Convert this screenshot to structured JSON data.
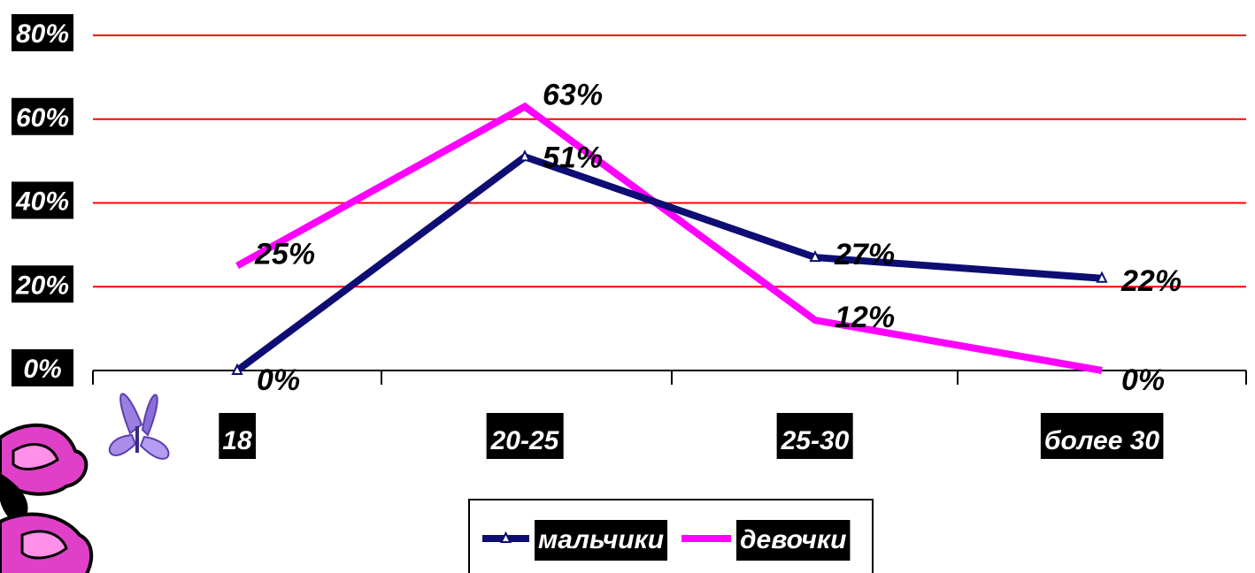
{
  "chart_data": {
    "type": "line",
    "title": "",
    "xlabel": "",
    "ylabel": "",
    "categories": [
      "18",
      "20-25",
      "25-30",
      "более 30"
    ],
    "ylim": [
      0,
      80
    ],
    "yticks": [
      "0%",
      "20%",
      "40%",
      "60%",
      "80%"
    ],
    "grid": true,
    "legend_position": "bottom",
    "series": [
      {
        "name": "мальчики",
        "values": [
          0,
          51,
          27,
          22
        ],
        "labels": [
          "0%",
          "51%",
          "27%",
          "22%"
        ],
        "color": "#0d0d73",
        "marker": "triangle-icon"
      },
      {
        "name": "девочки",
        "values": [
          25,
          63,
          12,
          0
        ],
        "labels": [
          "25%",
          "63%",
          "12%",
          "0%"
        ],
        "color": "#ff00ff"
      }
    ]
  },
  "colors": {
    "gridline": "#ff0000",
    "axis": "#000000",
    "label_bg": "#000000",
    "label_text": "#ffffff"
  },
  "decoration": {
    "icon": "butterfly-flower-icon"
  }
}
